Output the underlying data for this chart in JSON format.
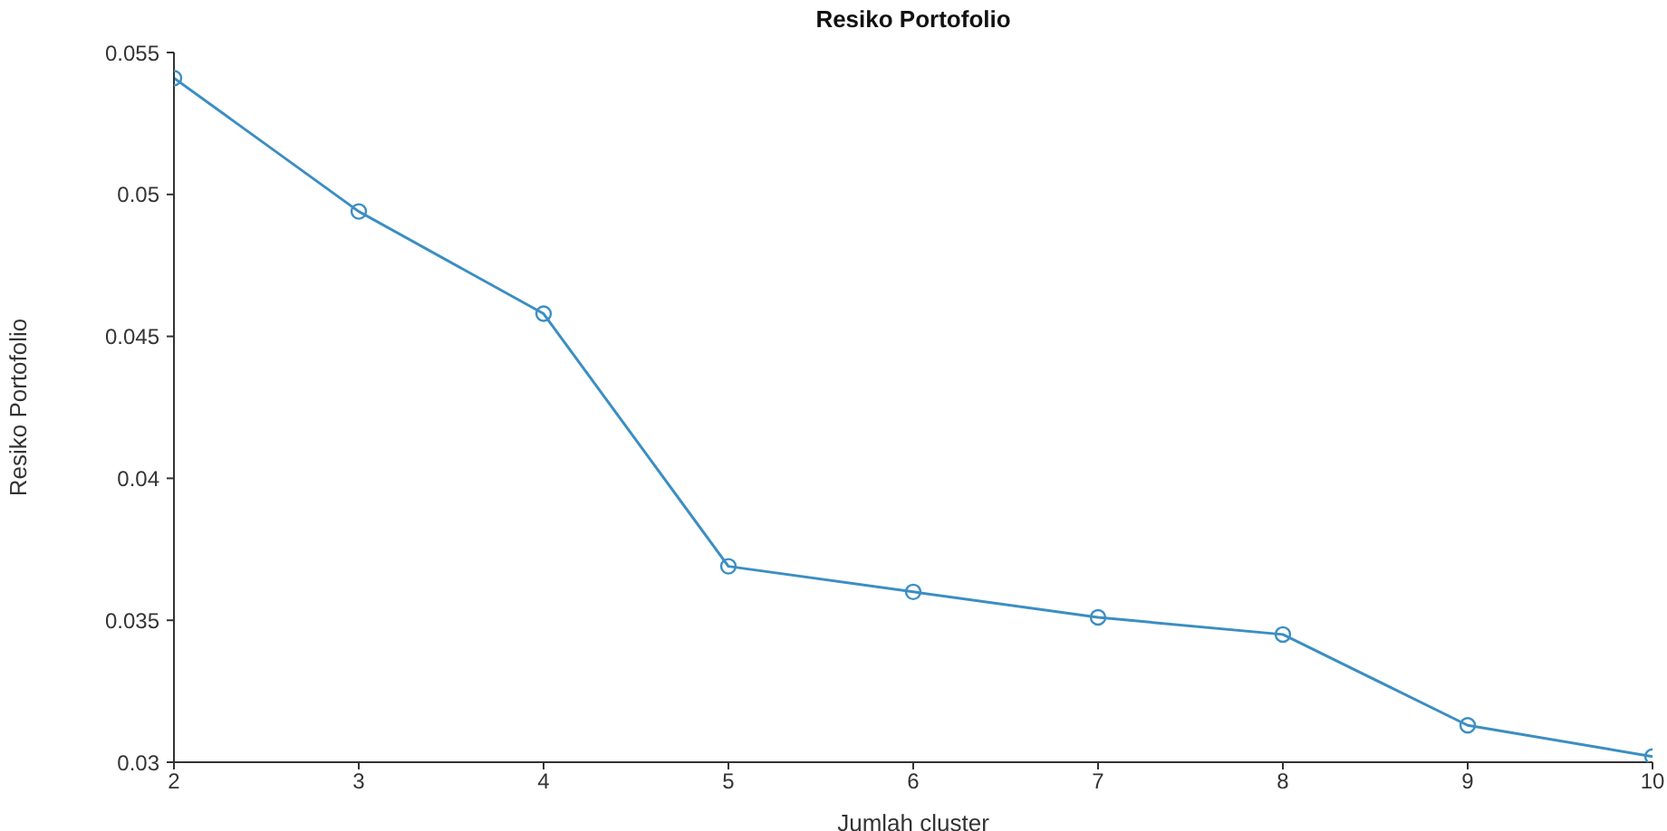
{
  "chart_data": {
    "type": "line",
    "title": "Resiko Portofolio",
    "xlabel": "Jumlah cluster",
    "ylabel": "Resiko Portofolio",
    "x": [
      2,
      3,
      4,
      5,
      6,
      7,
      8,
      9,
      10
    ],
    "series": [
      {
        "color": "#3b8ec2",
        "values": [
          0.0541,
          0.0494,
          0.0458,
          0.0369,
          0.036,
          0.0351,
          0.0345,
          0.0313,
          0.0302
        ]
      }
    ],
    "xlim": [
      2,
      10
    ],
    "xticks": [
      2,
      3,
      4,
      5,
      6,
      7,
      8,
      9,
      10
    ],
    "ylim": [
      0.03,
      0.055
    ],
    "yticks": [
      0.03,
      0.035,
      0.04,
      0.045,
      0.05,
      0.055
    ],
    "grid": false,
    "legend": false,
    "marker": "circle",
    "line_style": "solid"
  }
}
